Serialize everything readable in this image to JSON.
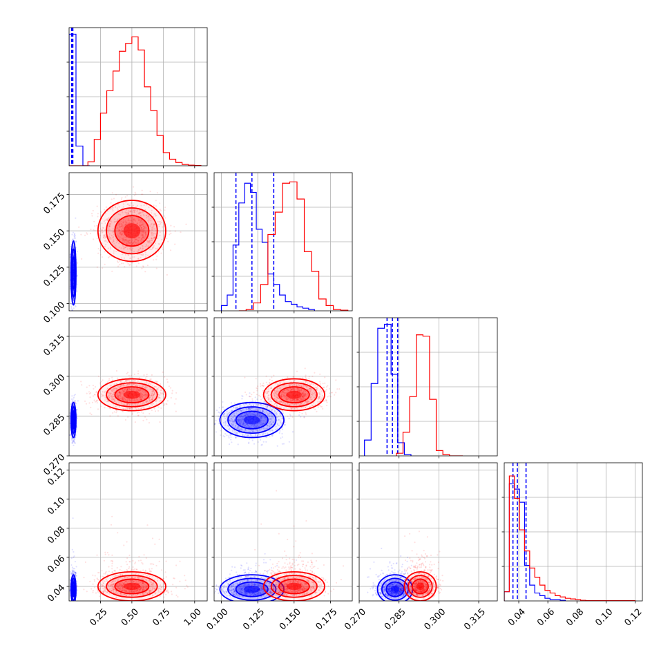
{
  "colors": {
    "series_a": "#0000ff",
    "series_b": "#ff0000",
    "grid": "#b0b0b0"
  },
  "chart_data": {
    "type": "corner",
    "grid": true,
    "parameters": [
      {
        "range": [
          0.0,
          1.1
        ],
        "ticks": [
          0.25,
          0.5,
          0.75,
          1.0
        ],
        "tick_labels": [
          "0.25",
          "0.50",
          "0.75",
          "1.00"
        ]
      },
      {
        "range": [
          0.095,
          0.19
        ],
        "ticks": [
          0.1,
          0.125,
          0.15,
          0.175
        ],
        "tick_labels": [
          "0.100",
          "0.125",
          "0.150",
          "0.175"
        ]
      },
      {
        "range": [
          0.27,
          0.322
        ],
        "ticks": [
          0.27,
          0.285,
          0.3,
          0.315
        ],
        "tick_labels": [
          "0.270",
          "0.285",
          "0.300",
          "0.315"
        ]
      },
      {
        "range": [
          0.03,
          0.125
        ],
        "ticks": [
          0.04,
          0.06,
          0.08,
          0.1,
          0.12
        ],
        "tick_labels": [
          "0.04",
          "0.06",
          "0.08",
          "0.10",
          "0.12"
        ]
      }
    ],
    "series": [
      {
        "color": "#0000ff",
        "mean": [
          0.035,
          0.121,
          0.2835,
          0.038
        ],
        "std": [
          0.01,
          0.011,
          0.0033,
          0.005
        ],
        "quantiles": [
          [
            0.02,
            0.025,
            0.03
          ],
          [
            0.11,
            0.121,
            0.136
          ],
          [
            0.2805,
            0.2825,
            0.2845
          ],
          [
            0.036,
            0.039,
            0.045
          ]
        ],
        "histograms": [
          {
            "edges": [
              0.0,
              0.055,
              0.11,
              0.165
            ],
            "counts": [
              1.0,
              0.15,
              0.0
            ]
          },
          {
            "edges": [
              0.1,
              0.104,
              0.108,
              0.112,
              0.116,
              0.12,
              0.124,
              0.128,
              0.132,
              0.136,
              0.14,
              0.144,
              0.148,
              0.152,
              0.156,
              0.16,
              0.164
            ],
            "counts": [
              0.04,
              0.12,
              0.5,
              0.82,
              0.97,
              0.9,
              0.62,
              0.52,
              0.28,
              0.2,
              0.12,
              0.07,
              0.05,
              0.03,
              0.02,
              0.01
            ]
          },
          {
            "edges": [
              0.272,
              0.2745,
              0.277,
              0.2795,
              0.282,
              0.2845,
              0.287,
              0.2895
            ],
            "counts": [
              0.12,
              0.55,
              0.97,
              1.0,
              0.62,
              0.1,
              0.01
            ]
          },
          {
            "edges": [
              0.03,
              0.0335,
              0.037,
              0.0405,
              0.044,
              0.0475,
              0.051,
              0.0545,
              0.058,
              0.0615,
              0.065,
              0.0685,
              0.072
            ],
            "counts": [
              0.07,
              0.89,
              0.85,
              0.75,
              0.27,
              0.12,
              0.06,
              0.04,
              0.02,
              0.01,
              0.01,
              0.005
            ]
          }
        ],
        "contours_2d": [
          [
            0.0,
            0.03
          ],
          [
            0.0,
            0.08
          ],
          [
            0.0,
            0.1
          ],
          [
            0.0,
            0.065
          ],
          [
            0.0,
            0.1
          ],
          [
            0.0,
            0.1
          ]
        ]
      },
      {
        "color": "#ff0000",
        "mean": [
          0.5,
          0.15,
          0.293,
          0.04
        ],
        "std": [
          0.135,
          0.0105,
          0.003,
          0.005
        ],
        "histograms": [
          {
            "edges": [
              0.0,
              0.05,
              0.1,
              0.15,
              0.2,
              0.25,
              0.3,
              0.35,
              0.4,
              0.45,
              0.5,
              0.55,
              0.6,
              0.65,
              0.7,
              0.75,
              0.8,
              0.85,
              0.9,
              0.95,
              1.0,
              1.05
            ],
            "counts": [
              0.0,
              0.0,
              0.0,
              0.03,
              0.2,
              0.4,
              0.57,
              0.72,
              0.87,
              0.93,
              0.98,
              0.88,
              0.6,
              0.42,
              0.23,
              0.1,
              0.05,
              0.025,
              0.01,
              0.005,
              0.002
            ]
          },
          {
            "edges": [
              0.112,
              0.117,
              0.122,
              0.127,
              0.132,
              0.137,
              0.142,
              0.147,
              0.152,
              0.157,
              0.162,
              0.167,
              0.172,
              0.177,
              0.182,
              0.187
            ],
            "counts": [
              0.0,
              0.01,
              0.06,
              0.2,
              0.58,
              0.75,
              0.97,
              0.98,
              0.85,
              0.45,
              0.3,
              0.09,
              0.04,
              0.01,
              0.005
            ]
          },
          {
            "edges": [
              0.284,
              0.2865,
              0.289,
              0.2915,
              0.294,
              0.2965,
              0.299,
              0.3015,
              0.304,
              0.3065,
              0.309
            ],
            "counts": [
              0.02,
              0.18,
              0.45,
              0.92,
              0.91,
              0.43,
              0.04,
              0.01,
              0.0,
              0.0
            ]
          },
          {
            "edges": [
              0.03,
              0.0335,
              0.037,
              0.0405,
              0.044,
              0.0475,
              0.051,
              0.0545,
              0.058,
              0.0615,
              0.065,
              0.0685,
              0.072,
              0.0755,
              0.079,
              0.0825,
              0.086,
              0.12
            ],
            "counts": [
              0.07,
              0.95,
              0.78,
              0.54,
              0.38,
              0.25,
              0.18,
              0.12,
              0.08,
              0.06,
              0.04,
              0.03,
              0.02,
              0.015,
              0.01,
              0.005,
              0.002
            ]
          }
        ]
      }
    ]
  }
}
